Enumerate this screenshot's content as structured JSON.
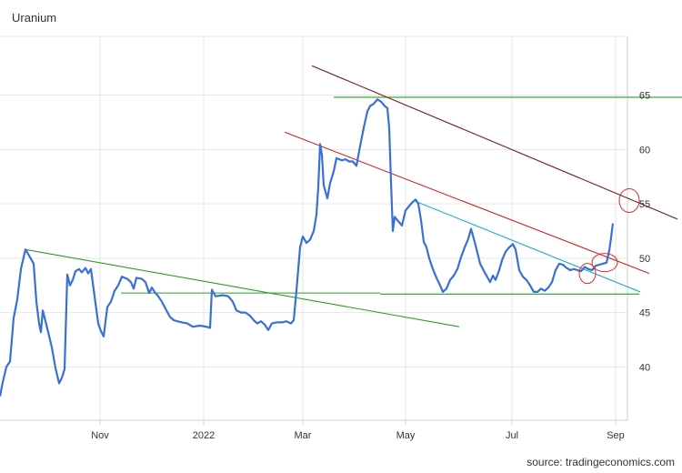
{
  "chart_data": {
    "type": "line",
    "title": "Uranium",
    "source": "source: tradingeconomics.com",
    "xlabel": "",
    "ylabel": "",
    "x_ticks": [
      "Nov",
      "2022",
      "Mar",
      "May",
      "Jul",
      "Sep"
    ],
    "y_ticks": [
      40,
      45,
      50,
      55,
      60,
      65
    ],
    "ylim": [
      35.1,
      70.4
    ],
    "grid": true,
    "colors": {
      "series": "#3a6fd3",
      "grid": "#e6e6e6",
      "green_line": "#2a9d2a",
      "red_line": "#c62828",
      "dark_red_line": "#6d1b1b",
      "cyan_line": "#29a8d8",
      "circle": "#d32f2f"
    },
    "series": [
      {
        "values": [
          [
            0,
            37.3
          ],
          [
            3,
            38.6
          ],
          [
            7,
            40.0
          ],
          [
            11,
            40.5
          ],
          [
            15,
            44.5
          ],
          [
            19,
            46.2
          ],
          [
            23,
            49.0
          ],
          [
            28,
            50.8
          ],
          [
            33,
            50.1
          ],
          [
            37,
            49.5
          ],
          [
            40,
            46.0
          ],
          [
            43,
            44.0
          ],
          [
            45,
            43.2
          ],
          [
            47,
            45.2
          ],
          [
            50,
            44.2
          ],
          [
            53,
            43.2
          ],
          [
            57,
            41.8
          ],
          [
            61,
            39.9
          ],
          [
            65,
            38.5
          ],
          [
            68,
            39.0
          ],
          [
            71,
            39.8
          ],
          [
            74,
            48.5
          ],
          [
            77,
            47.5
          ],
          [
            80,
            48.0
          ],
          [
            83,
            48.8
          ],
          [
            87,
            49.0
          ],
          [
            90,
            48.7
          ],
          [
            94,
            49.1
          ],
          [
            97,
            48.6
          ],
          [
            100,
            49.0
          ],
          [
            104,
            46.5
          ],
          [
            108,
            44.0
          ],
          [
            111,
            43.3
          ],
          [
            114,
            42.8
          ],
          [
            118,
            45.5
          ],
          [
            122,
            46.0
          ],
          [
            126,
            47.0
          ],
          [
            130,
            47.5
          ],
          [
            134,
            48.3
          ],
          [
            140,
            48.1
          ],
          [
            144,
            47.8
          ],
          [
            147,
            47.2
          ],
          [
            150,
            48.2
          ],
          [
            156,
            48.1
          ],
          [
            160,
            47.8
          ],
          [
            164,
            46.8
          ],
          [
            167,
            47.3
          ],
          [
            170,
            46.9
          ],
          [
            174,
            46.5
          ],
          [
            178,
            46.0
          ],
          [
            183,
            45.2
          ],
          [
            187,
            44.6
          ],
          [
            191,
            44.3
          ],
          [
            195,
            44.2
          ],
          [
            200,
            44.1
          ],
          [
            206,
            44.0
          ],
          [
            212,
            43.7
          ],
          [
            220,
            43.8
          ],
          [
            227,
            43.7
          ],
          [
            231,
            43.6
          ],
          [
            233,
            47.1
          ],
          [
            237,
            46.5
          ],
          [
            245,
            46.6
          ],
          [
            251,
            46.5
          ],
          [
            256,
            46.0
          ],
          [
            260,
            45.2
          ],
          [
            265,
            45.0
          ],
          [
            270,
            45.0
          ],
          [
            275,
            44.7
          ],
          [
            279,
            44.3
          ],
          [
            283,
            44.0
          ],
          [
            287,
            44.2
          ],
          [
            291,
            43.9
          ],
          [
            295,
            43.4
          ],
          [
            299,
            44.0
          ],
          [
            304,
            44.1
          ],
          [
            310,
            44.1
          ],
          [
            315,
            44.2
          ],
          [
            320,
            44.0
          ],
          [
            323,
            44.3
          ],
          [
            326,
            47.0
          ],
          [
            330,
            51.0
          ],
          [
            333,
            52.0
          ],
          [
            337,
            51.4
          ],
          [
            341,
            51.7
          ],
          [
            345,
            52.5
          ],
          [
            348,
            54.0
          ],
          [
            350,
            56.5
          ],
          [
            352,
            60.5
          ],
          [
            354,
            59.5
          ],
          [
            356,
            56.7
          ],
          [
            360,
            55.5
          ],
          [
            363,
            56.9
          ],
          [
            367,
            58.0
          ],
          [
            370,
            59.2
          ],
          [
            376,
            59.0
          ],
          [
            380,
            59.1
          ],
          [
            384,
            58.9
          ],
          [
            388,
            58.9
          ],
          [
            392,
            58.5
          ],
          [
            396,
            60.3
          ],
          [
            400,
            62.0
          ],
          [
            404,
            63.5
          ],
          [
            407,
            64.0
          ],
          [
            411,
            64.2
          ],
          [
            415,
            64.6
          ],
          [
            419,
            64.4
          ],
          [
            423,
            64.0
          ],
          [
            426,
            63.8
          ],
          [
            428,
            62.0
          ],
          [
            430,
            57.0
          ],
          [
            432,
            52.5
          ],
          [
            434,
            53.8
          ],
          [
            438,
            53.4
          ],
          [
            442,
            53.0
          ],
          [
            446,
            54.4
          ],
          [
            450,
            54.8
          ],
          [
            453,
            55.1
          ],
          [
            457,
            55.4
          ],
          [
            460,
            55.0
          ],
          [
            463,
            53.5
          ],
          [
            466,
            51.5
          ],
          [
            469,
            51.0
          ],
          [
            472,
            50.0
          ],
          [
            476,
            49.0
          ],
          [
            480,
            48.2
          ],
          [
            484,
            47.5
          ],
          [
            487,
            46.9
          ],
          [
            491,
            47.2
          ],
          [
            495,
            48.0
          ],
          [
            499,
            48.4
          ],
          [
            503,
            49.0
          ],
          [
            507,
            50.1
          ],
          [
            511,
            51.0
          ],
          [
            515,
            51.8
          ],
          [
            518,
            52.7
          ],
          [
            522,
            51.5
          ],
          [
            525,
            50.5
          ],
          [
            528,
            49.5
          ],
          [
            531,
            49.0
          ],
          [
            535,
            48.4
          ],
          [
            539,
            47.8
          ],
          [
            542,
            48.4
          ],
          [
            545,
            48.0
          ],
          [
            549,
            48.9
          ],
          [
            552,
            49.8
          ],
          [
            556,
            50.6
          ],
          [
            560,
            51.0
          ],
          [
            564,
            51.3
          ],
          [
            567,
            50.8
          ],
          [
            571,
            48.9
          ],
          [
            575,
            48.3
          ],
          [
            579,
            48.0
          ],
          [
            583,
            47.5
          ],
          [
            587,
            46.9
          ],
          [
            591,
            46.9
          ],
          [
            595,
            47.2
          ],
          [
            599,
            47.0
          ],
          [
            603,
            47.3
          ],
          [
            607,
            47.8
          ],
          [
            611,
            48.9
          ],
          [
            615,
            49.5
          ],
          [
            619,
            49.4
          ],
          [
            623,
            49.1
          ],
          [
            627,
            48.9
          ],
          [
            631,
            49.0
          ],
          [
            635,
            48.9
          ],
          [
            639,
            48.8
          ],
          [
            643,
            49.2
          ],
          [
            647,
            49.0
          ],
          [
            651,
            48.9
          ],
          [
            655,
            49.3
          ],
          [
            659,
            49.4
          ],
          [
            663,
            49.5
          ],
          [
            667,
            49.6
          ],
          [
            670,
            50.7
          ],
          [
            672,
            51.9
          ],
          [
            674,
            53.2
          ]
        ]
      }
    ],
    "annotation_lines": [
      {
        "color": "green_line",
        "points": [
          [
            28,
            50.8
          ],
          [
            505,
            43.7
          ]
        ]
      },
      {
        "color": "green_line",
        "points": [
          [
            133,
            46.8
          ],
          [
            418,
            46.8
          ]
        ]
      },
      {
        "color": "green_line",
        "points": [
          [
            418,
            46.7
          ],
          [
            703,
            46.7
          ]
        ]
      },
      {
        "color": "green_line",
        "points": [
          [
            367,
            64.8
          ],
          [
            750,
            64.8
          ]
        ]
      },
      {
        "color": "red_line",
        "points": [
          [
            313,
            61.6
          ],
          [
            714,
            48.6
          ]
        ]
      },
      {
        "color": "dark_red_line",
        "points": [
          [
            343,
            67.7
          ],
          [
            745,
            53.6
          ]
        ]
      },
      {
        "color": "cyan_line",
        "points": [
          [
            455,
            55.3
          ],
          [
            704,
            46.9
          ]
        ]
      }
    ],
    "annotation_circles": [
      {
        "cx": 692,
        "cy": 55.3,
        "rx": 11,
        "ry": 13
      },
      {
        "cx": 665,
        "cy": 49.6,
        "rx": 14,
        "ry": 10
      },
      {
        "cx": 646,
        "cy": 48.6,
        "rx": 9,
        "ry": 11
      }
    ]
  }
}
